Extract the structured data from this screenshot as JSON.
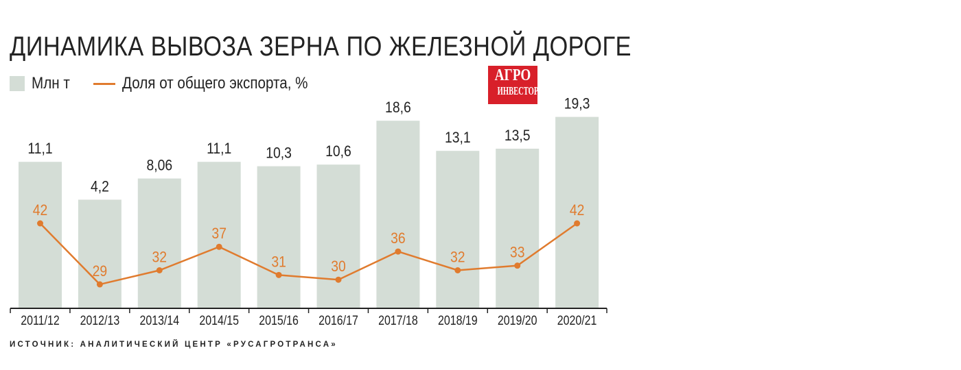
{
  "chart_data": {
    "type": "bar+line",
    "title": "ДИНАМИКА ВЫВОЗА ЗЕРНА ПО ЖЕЛЕЗНОЙ ДОРОГЕ",
    "categories": [
      "2011/12",
      "2012/13",
      "2013/14",
      "2014/15",
      "2015/16",
      "2016/17",
      "2017/18",
      "2018/19",
      "2019/20",
      "2020/21"
    ],
    "series": [
      {
        "name": "Млн т",
        "type": "bar",
        "color": "#d4ddd6",
        "values": [
          11.1,
          4.2,
          8.06,
          11.1,
          10.3,
          10.6,
          18.6,
          13.1,
          13.5,
          19.3
        ],
        "labels": [
          "11,1",
          "4,2",
          "8,06",
          "11,1",
          "10,3",
          "10,6",
          "18,6",
          "13,1",
          "13,5",
          "19,3"
        ]
      },
      {
        "name": "Доля от общего экспорта, %",
        "type": "line",
        "color": "#e07b2e",
        "values": [
          42,
          29,
          32,
          37,
          31,
          30,
          36,
          32,
          33,
          42
        ]
      }
    ],
    "grid": false,
    "legend": "top-left"
  },
  "logo": {
    "line1": "АГРО",
    "line2": "ИНВЕСТОР",
    "color": "#d8202a"
  },
  "source": "ИСТОЧНИК: АНАЛИТИЧЕСКИЙ ЦЕНТР «РУСАГРОТРАНСА»"
}
